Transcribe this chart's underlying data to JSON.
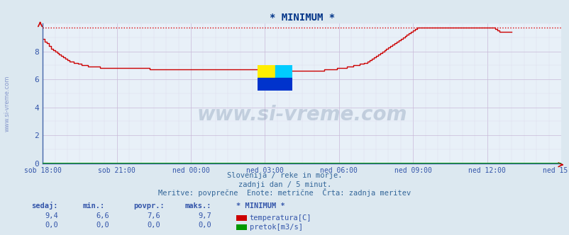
{
  "title": "* MINIMUM *",
  "bg_color": "#dce8f0",
  "plot_bg_color": "#e8f0f8",
  "grid_color_major": "#c8b8d8",
  "grid_color_minor": "#ddd8ec",
  "line_color": "#cc0000",
  "zero_line_color": "#009900",
  "dotted_line_color": "#dd0000",
  "dotted_line_value": 9.7,
  "x_labels": [
    "sob 18:00",
    "sob 21:00",
    "ned 00:00",
    "ned 03:00",
    "ned 06:00",
    "ned 09:00",
    "ned 12:00",
    "ned 15:00"
  ],
  "ylim": [
    0,
    10
  ],
  "yticks": [
    0,
    2,
    4,
    6,
    8
  ],
  "subtitle1": "Slovenija / reke in morje.",
  "subtitle2": "zadnji dan / 5 minut.",
  "subtitle3": "Meritve: povprečne  Enote: metrične  Črta: zadnja meritev",
  "watermark": "www.si-vreme.com",
  "watermark_color": "#1a3a6a",
  "footer_col_labels": [
    "sedaj:",
    "min.:",
    "povpr.:",
    "maks.:",
    "* MINIMUM *"
  ],
  "footer_row1": [
    "9,4",
    "6,6",
    "7,6",
    "9,7"
  ],
  "footer_row2": [
    "0,0",
    "0,0",
    "0,0",
    "0,0"
  ],
  "legend_items": [
    {
      "label": "temperatura[C]",
      "color": "#cc0000"
    },
    {
      "label": "pretok[m3/s]",
      "color": "#009900"
    }
  ],
  "temperatura_data": [
    8.9,
    8.7,
    8.6,
    8.4,
    8.2,
    8.1,
    8.0,
    7.9,
    7.8,
    7.7,
    7.6,
    7.5,
    7.4,
    7.3,
    7.3,
    7.2,
    7.2,
    7.1,
    7.1,
    7.0,
    7.0,
    7.0,
    6.9,
    6.9,
    6.9,
    6.9,
    6.9,
    6.9,
    6.8,
    6.8,
    6.8,
    6.8,
    6.8,
    6.8,
    6.8,
    6.8,
    6.8,
    6.8,
    6.8,
    6.8,
    6.8,
    6.8,
    6.8,
    6.8,
    6.8,
    6.8,
    6.8,
    6.8,
    6.8,
    6.8,
    6.8,
    6.8,
    6.7,
    6.7,
    6.7,
    6.7,
    6.7,
    6.7,
    6.7,
    6.7,
    6.7,
    6.7,
    6.7,
    6.7,
    6.7,
    6.7,
    6.7,
    6.7,
    6.7,
    6.7,
    6.7,
    6.7,
    6.7,
    6.7,
    6.7,
    6.7,
    6.7,
    6.7,
    6.7,
    6.7,
    6.7,
    6.7,
    6.7,
    6.7,
    6.7,
    6.7,
    6.7,
    6.7,
    6.7,
    6.7,
    6.7,
    6.7,
    6.7,
    6.7,
    6.7,
    6.7,
    6.7,
    6.7,
    6.7,
    6.7,
    6.7,
    6.7,
    6.7,
    6.7,
    6.7,
    6.7,
    6.7,
    6.7,
    6.7,
    6.7,
    6.7,
    6.7,
    6.7,
    6.7,
    6.7,
    6.7,
    6.6,
    6.6,
    6.6,
    6.6,
    6.6,
    6.6,
    6.6,
    6.6,
    6.6,
    6.6,
    6.6,
    6.6,
    6.6,
    6.6,
    6.6,
    6.6,
    6.6,
    6.6,
    6.6,
    6.6,
    6.6,
    6.7,
    6.7,
    6.7,
    6.7,
    6.7,
    6.7,
    6.8,
    6.8,
    6.8,
    6.8,
    6.8,
    6.9,
    6.9,
    6.9,
    7.0,
    7.0,
    7.0,
    7.1,
    7.1,
    7.2,
    7.2,
    7.3,
    7.4,
    7.5,
    7.6,
    7.7,
    7.8,
    7.9,
    8.0,
    8.1,
    8.2,
    8.3,
    8.4,
    8.5,
    8.6,
    8.7,
    8.8,
    8.9,
    9.0,
    9.1,
    9.2,
    9.3,
    9.4,
    9.5,
    9.6,
    9.7,
    9.7,
    9.7,
    9.7,
    9.7,
    9.7,
    9.7,
    9.7,
    9.7,
    9.7,
    9.7,
    9.7,
    9.7,
    9.7,
    9.7,
    9.7,
    9.7,
    9.7,
    9.7,
    9.7,
    9.7,
    9.7,
    9.7,
    9.7,
    9.7,
    9.7,
    9.7,
    9.7,
    9.7,
    9.7,
    9.7,
    9.7,
    9.7,
    9.7,
    9.7,
    9.7,
    9.7,
    9.7,
    9.6,
    9.5,
    9.4,
    9.4,
    9.4,
    9.4,
    9.4,
    9.4,
    9.4
  ]
}
